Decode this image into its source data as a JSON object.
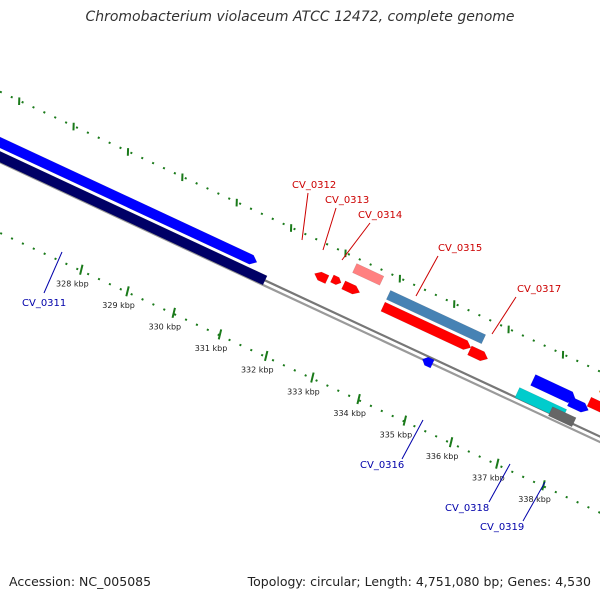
{
  "title": "Chromobacterium violaceum ATCC 12472, complete genome",
  "footer": {
    "accession": "Accession: NC_005085",
    "summary": "Topology: circular; Length: 4,751,080 bp; Genes: 4,530"
  },
  "colors": {
    "forward_gene": "#ff0000",
    "reverse_gene": "#0000ff",
    "backbone": "#888888",
    "tick": "#1a7a1a",
    "label_forward": "#cc0000",
    "label_reverse": "#0000aa"
  },
  "ticks": [
    {
      "label": "328 kbp"
    },
    {
      "label": "329 kbp"
    },
    {
      "label": "330 kbp"
    },
    {
      "label": "331 kbp"
    },
    {
      "label": "332 kbp"
    },
    {
      "label": "333 kbp"
    },
    {
      "label": "334 kbp"
    },
    {
      "label": "335 kbp"
    },
    {
      "label": "336 kbp"
    },
    {
      "label": "337 kbp"
    },
    {
      "label": "338 kbp"
    }
  ],
  "gene_labels": [
    {
      "text": "CV_0311",
      "strand": "reverse"
    },
    {
      "text": "CV_0312",
      "strand": "forward"
    },
    {
      "text": "CV_0313",
      "strand": "forward"
    },
    {
      "text": "CV_0314",
      "strand": "forward"
    },
    {
      "text": "CV_0315",
      "strand": "forward"
    },
    {
      "text": "CV_0317",
      "strand": "forward"
    },
    {
      "text": "CV_0316",
      "strand": "reverse"
    },
    {
      "text": "CV_0318",
      "strand": "reverse"
    },
    {
      "text": "CV_0319",
      "strand": "reverse"
    }
  ]
}
